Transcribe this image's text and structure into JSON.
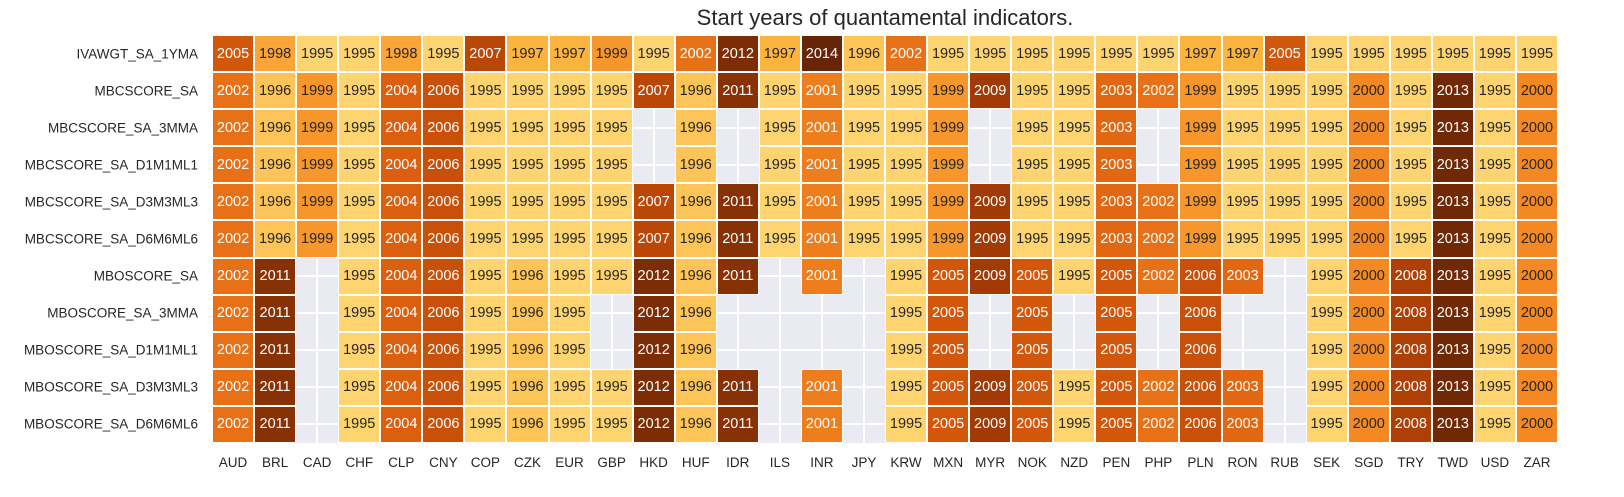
{
  "chart_data": {
    "type": "heatmap",
    "title": "Start years of quantamental indicators.",
    "xlabel": "",
    "ylabel": "",
    "colormap": "YlOrBr",
    "value_range": [
      1995,
      2014
    ],
    "missing_color": "#eaeaf2",
    "columns": [
      "AUD",
      "BRL",
      "CAD",
      "CHF",
      "CLP",
      "CNY",
      "COP",
      "CZK",
      "EUR",
      "GBP",
      "HKD",
      "HUF",
      "IDR",
      "ILS",
      "INR",
      "JPY",
      "KRW",
      "MXN",
      "MYR",
      "NOK",
      "NZD",
      "PEN",
      "PHP",
      "PLN",
      "RON",
      "RUB",
      "SEK",
      "SGD",
      "TRY",
      "TWD",
      "USD",
      "ZAR"
    ],
    "rows": [
      "IVAWGT_SA_1YMA",
      "MBCSCORE_SA",
      "MBCSCORE_SA_3MMA",
      "MBCSCORE_SA_D1M1ML1",
      "MBCSCORE_SA_D3M3ML3",
      "MBCSCORE_SA_D6M6ML6",
      "MBOSCORE_SA",
      "MBOSCORE_SA_3MMA",
      "MBOSCORE_SA_D1M1ML1",
      "MBOSCORE_SA_D3M3ML3",
      "MBOSCORE_SA_D6M6ML6"
    ],
    "values": [
      [
        2005,
        1998,
        1995,
        1995,
        1998,
        1995,
        2007,
        1997,
        1997,
        1999,
        1995,
        2002,
        2012,
        1997,
        2014,
        1996,
        2002,
        1995,
        1995,
        1995,
        1995,
        1995,
        1995,
        1997,
        1997,
        2005,
        1995,
        1995,
        1995,
        1995,
        1995,
        1995
      ],
      [
        2002,
        1996,
        1999,
        1995,
        2004,
        2006,
        1995,
        1995,
        1995,
        1995,
        2007,
        1996,
        2011,
        1995,
        2001,
        1995,
        1995,
        1999,
        2009,
        1995,
        1995,
        2003,
        2002,
        1999,
        1995,
        1995,
        1995,
        2000,
        1995,
        2013,
        1995,
        2000
      ],
      [
        2002,
        1996,
        1999,
        1995,
        2004,
        2006,
        1995,
        1995,
        1995,
        1995,
        null,
        1996,
        null,
        1995,
        2001,
        1995,
        1995,
        1999,
        null,
        1995,
        1995,
        2003,
        null,
        1999,
        1995,
        1995,
        1995,
        2000,
        1995,
        2013,
        1995,
        2000
      ],
      [
        2002,
        1996,
        1999,
        1995,
        2004,
        2006,
        1995,
        1995,
        1995,
        1995,
        null,
        1996,
        null,
        1995,
        2001,
        1995,
        1995,
        1999,
        null,
        1995,
        1995,
        2003,
        null,
        1999,
        1995,
        1995,
        1995,
        2000,
        1995,
        2013,
        1995,
        2000
      ],
      [
        2002,
        1996,
        1999,
        1995,
        2004,
        2006,
        1995,
        1995,
        1995,
        1995,
        2007,
        1996,
        2011,
        1995,
        2001,
        1995,
        1995,
        1999,
        2009,
        1995,
        1995,
        2003,
        2002,
        1999,
        1995,
        1995,
        1995,
        2000,
        1995,
        2013,
        1995,
        2000
      ],
      [
        2002,
        1996,
        1999,
        1995,
        2004,
        2006,
        1995,
        1995,
        1995,
        1995,
        2007,
        1996,
        2011,
        1995,
        2001,
        1995,
        1995,
        1999,
        2009,
        1995,
        1995,
        2003,
        2002,
        1999,
        1995,
        1995,
        1995,
        2000,
        1995,
        2013,
        1995,
        2000
      ],
      [
        2002,
        2011,
        null,
        1995,
        2004,
        2006,
        1995,
        1996,
        1995,
        1995,
        2012,
        1996,
        2011,
        null,
        2001,
        null,
        1995,
        2005,
        2009,
        2005,
        1995,
        2005,
        2002,
        2006,
        2003,
        null,
        1995,
        2000,
        2008,
        2013,
        1995,
        2000
      ],
      [
        2002,
        2011,
        null,
        1995,
        2004,
        2006,
        1995,
        1996,
        1995,
        null,
        2012,
        1996,
        null,
        null,
        null,
        null,
        1995,
        2005,
        null,
        2005,
        null,
        2005,
        null,
        2006,
        null,
        null,
        1995,
        2000,
        2008,
        2013,
        1995,
        2000
      ],
      [
        2002,
        2011,
        null,
        1995,
        2004,
        2006,
        1995,
        1996,
        1995,
        null,
        2012,
        1996,
        null,
        null,
        null,
        null,
        1995,
        2005,
        null,
        2005,
        null,
        2005,
        null,
        2006,
        null,
        null,
        1995,
        2000,
        2008,
        2013,
        1995,
        2000
      ],
      [
        2002,
        2011,
        null,
        1995,
        2004,
        2006,
        1995,
        1996,
        1995,
        1995,
        2012,
        1996,
        2011,
        null,
        2001,
        null,
        1995,
        2005,
        2009,
        2005,
        1995,
        2005,
        2002,
        2006,
        2003,
        null,
        1995,
        2000,
        2008,
        2013,
        1995,
        2000
      ],
      [
        2002,
        2011,
        null,
        1995,
        2004,
        2006,
        1995,
        1996,
        1995,
        1995,
        2012,
        1996,
        2011,
        null,
        2001,
        null,
        1995,
        2005,
        2009,
        2005,
        1995,
        2005,
        2002,
        2006,
        2003,
        null,
        1995,
        2000,
        2008,
        2013,
        1995,
        2000
      ]
    ]
  }
}
